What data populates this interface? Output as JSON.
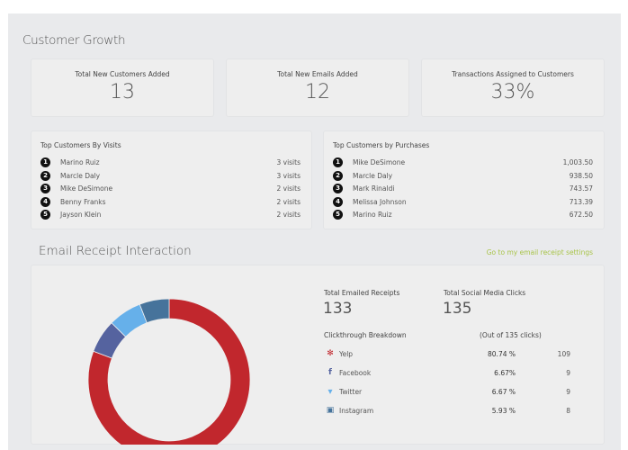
{
  "customer_growth": {
    "title": "Customer Growth",
    "stats": [
      {
        "label": "Total New Customers Added",
        "value": "13"
      },
      {
        "label": "Total New Emails Added",
        "value": "12"
      },
      {
        "label": "Transactions Assigned to Customers",
        "value": "33%"
      }
    ],
    "top_visits": {
      "title": "Top Customers By Visits",
      "items": [
        {
          "rank": "1",
          "name": "Marino Ruiz",
          "value": "3 visits"
        },
        {
          "rank": "2",
          "name": "Marcle Daly",
          "value": "3 visits"
        },
        {
          "rank": "3",
          "name": "Mike DeSimone",
          "value": "2 visits"
        },
        {
          "rank": "4",
          "name": "Benny Franks",
          "value": "2 visits"
        },
        {
          "rank": "5",
          "name": "Jayson Klein",
          "value": "2 visits"
        }
      ]
    },
    "top_purchases": {
      "title": "Top Customers by Purchases",
      "items": [
        {
          "rank": "1",
          "name": "Mike DeSimone",
          "value": "1,003.50"
        },
        {
          "rank": "2",
          "name": "Marcle Daly",
          "value": "938.50"
        },
        {
          "rank": "3",
          "name": "Mark Rinaldi",
          "value": "743.57"
        },
        {
          "rank": "4",
          "name": "Melissa Johnson",
          "value": "713.39"
        },
        {
          "rank": "5",
          "name": "Marino Ruiz",
          "value": "672.50"
        }
      ]
    }
  },
  "email_receipt": {
    "title": "Email Receipt Interaction",
    "settings_link": "Go to my email receipt settings",
    "link_color": "#a9c44a",
    "total_emailed_label": "Total Emailed Receipts",
    "total_emailed": "133",
    "total_social_label": "Total Social Media Clicks",
    "total_social": "135",
    "breakdown_label": "Clickthrough Breakdown",
    "out_of_label": "(Out of 135 clicks)",
    "rows": [
      {
        "icon": "yelp-icon",
        "name": "Yelp",
        "percent": "80.74 %",
        "count": "109",
        "color": "#c1272d"
      },
      {
        "icon": "facebook-icon",
        "name": "Facebook",
        "percent": "6.67%",
        "count": "9",
        "color": "#55639f"
      },
      {
        "icon": "twitter-icon",
        "name": "Twitter",
        "percent": "6.67 %",
        "count": "9",
        "color": "#66b0ea"
      },
      {
        "icon": "instagram-icon",
        "name": "Instagram",
        "percent": "5.93 %",
        "count": "8",
        "color": "#46739b"
      }
    ]
  },
  "chart_data": {
    "type": "pie",
    "categories": [
      "Yelp",
      "Facebook",
      "Twitter",
      "Instagram"
    ],
    "values": [
      109,
      9,
      9,
      8
    ],
    "colors": [
      "#c1272d",
      "#55639f",
      "#66b0ea",
      "#46739b"
    ],
    "donut": true
  }
}
